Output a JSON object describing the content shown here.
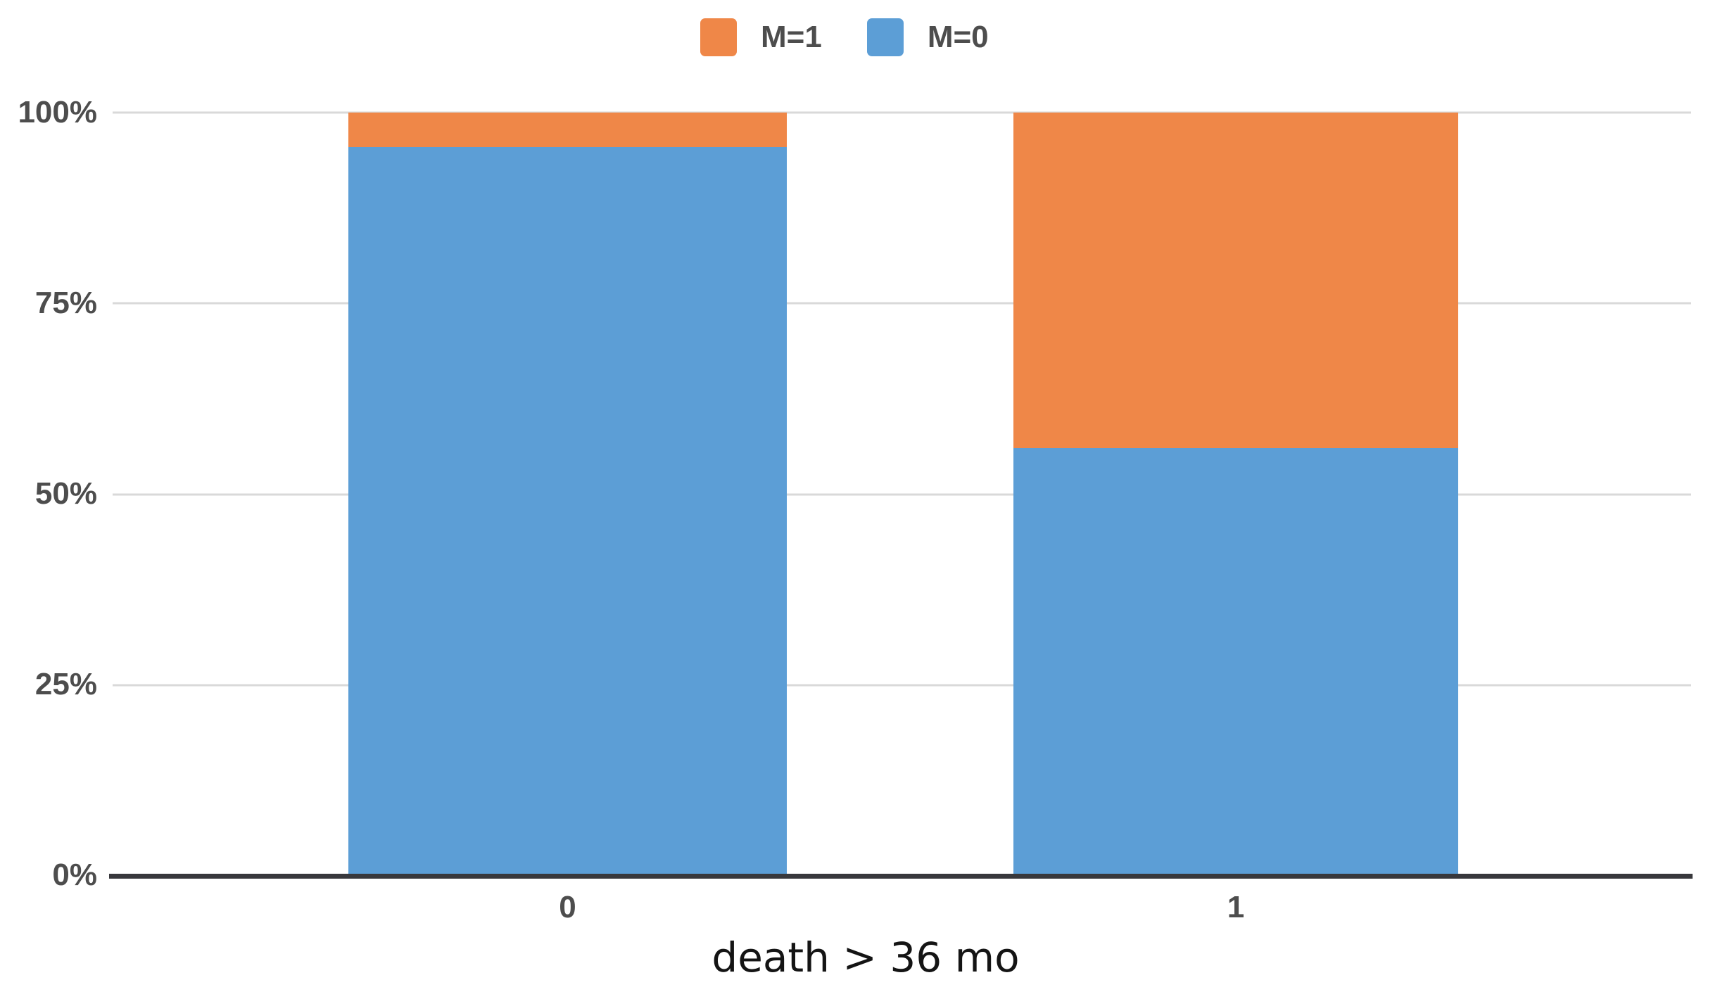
{
  "chart_data": {
    "type": "bar",
    "subtype": "stacked-100-percent",
    "title": "",
    "xlabel": "death > 36 mo",
    "ylabel": "",
    "units": "%",
    "categories": [
      "0",
      "1"
    ],
    "series": [
      {
        "name": "M=1",
        "color": "#EF8748",
        "values": [
          4.5,
          44.0
        ]
      },
      {
        "name": "M=0",
        "color": "#5C9ED6",
        "values": [
          95.5,
          56.0
        ]
      }
    ],
    "y_ticks": [
      "100%",
      "75%",
      "50%",
      "25%",
      "0%"
    ],
    "ylim": [
      0,
      100
    ],
    "grid": "horizontal",
    "gridline_color": "#d9d9d9",
    "axis_line_color": "#38383c",
    "legend_position": "top-center"
  }
}
